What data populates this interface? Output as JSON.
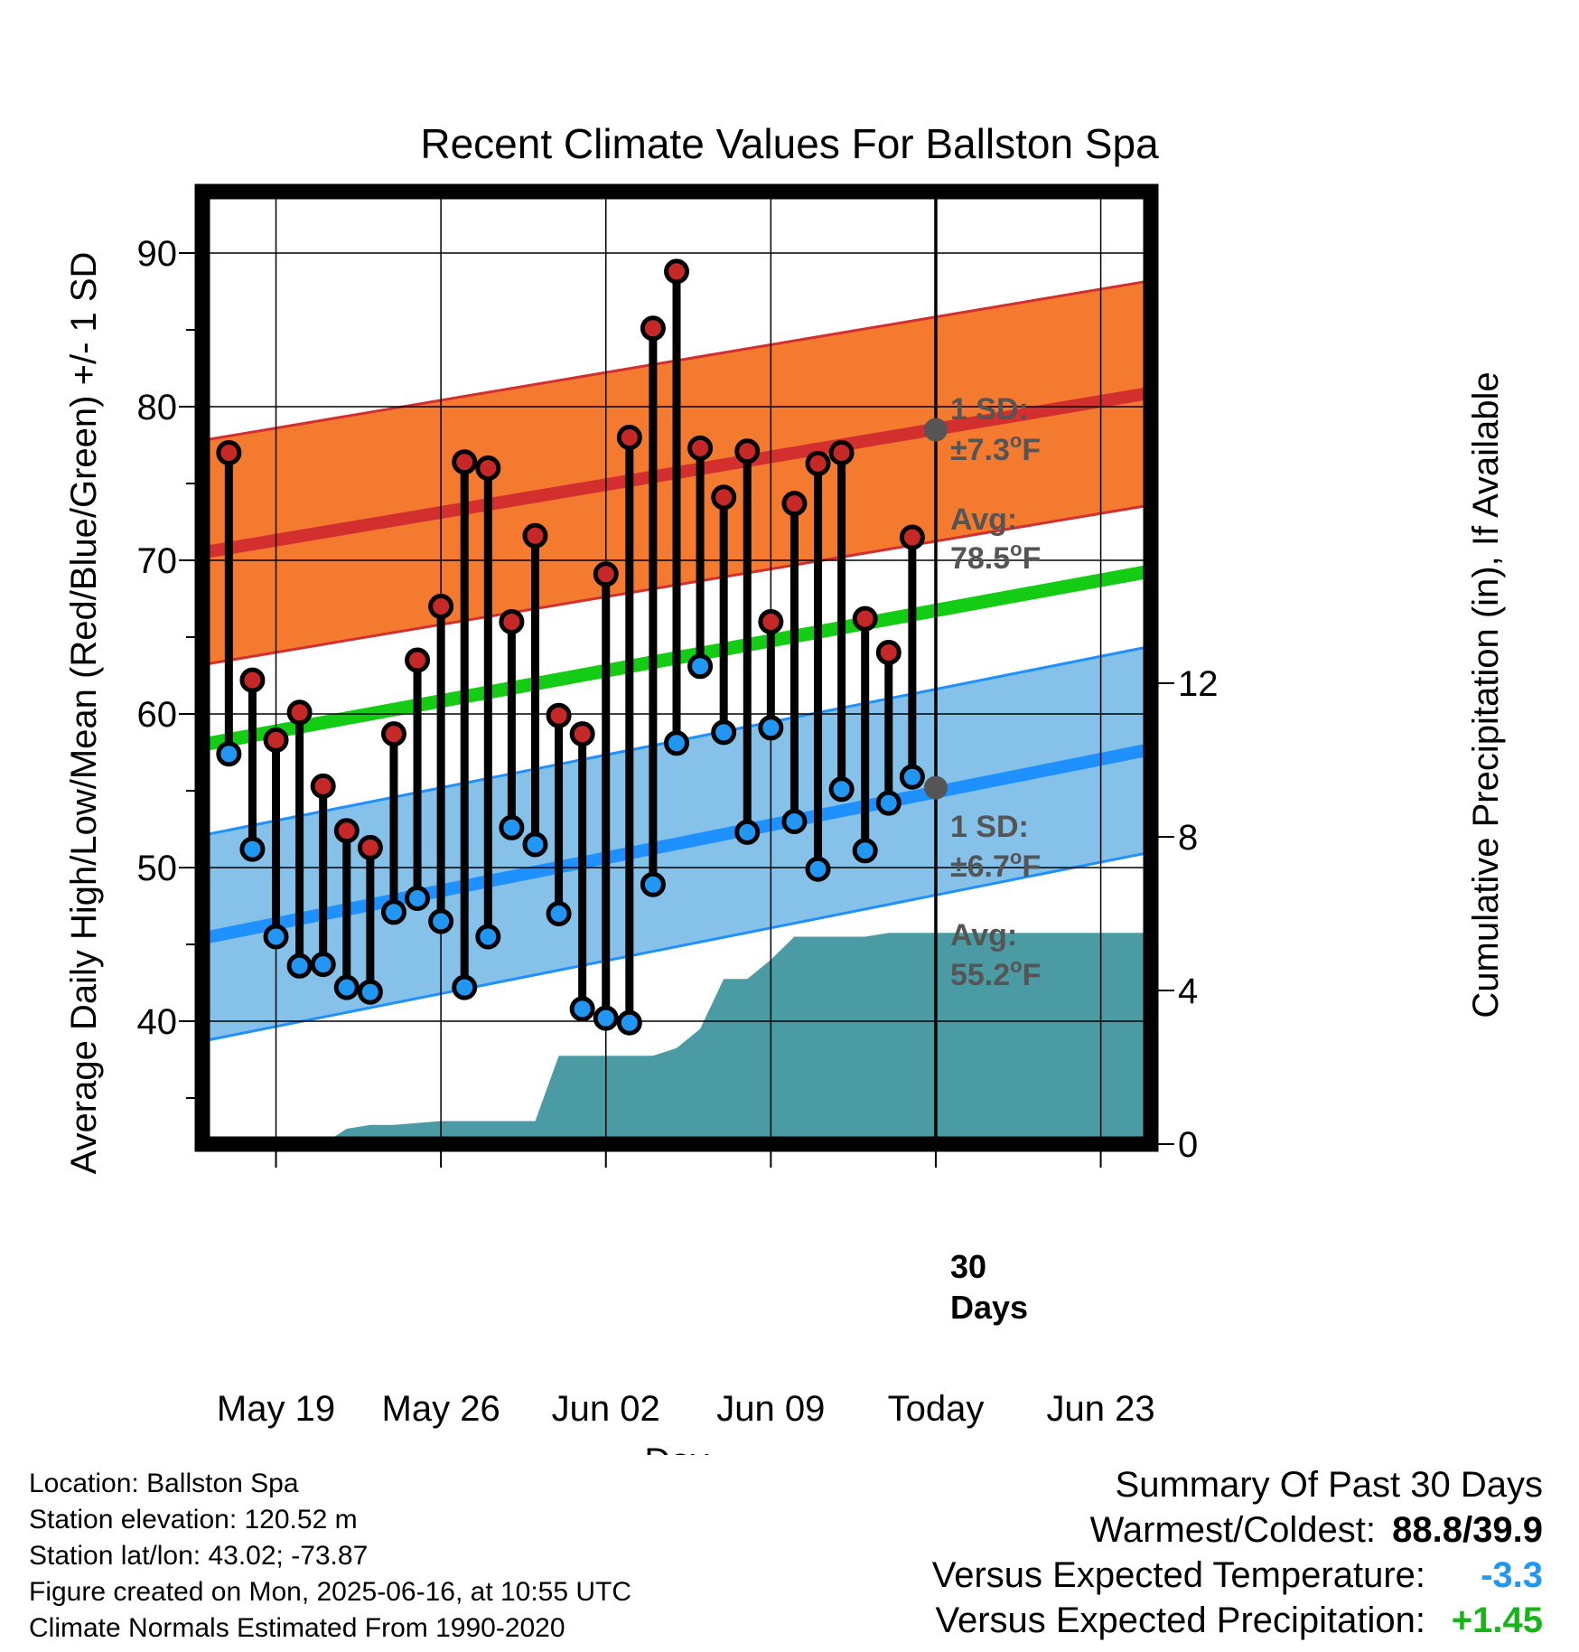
{
  "chart_data": {
    "type": "line",
    "title": "Recent Climate Values For Ballston Spa",
    "xlabel": "Day",
    "ylabel_left": "Average Daily High/Low/Mean (Red/Blue/Green) +/- 1 SD",
    "ylabel_right": "Cumulative Precipitation (in), If Available",
    "x_ticks": [
      "May 19",
      "May 26",
      "Jun 02",
      "Jun 09",
      "Today",
      "Jun 23"
    ],
    "x_tick_days": [
      "2025-05-19",
      "2025-05-26",
      "2025-06-02",
      "2025-06-09",
      "2025-06-16",
      "2025-06-23"
    ],
    "xlim": [
      "2025-05-15 21:00",
      "2025-06-25 03:00"
    ],
    "y_ticks_left": [
      "40",
      "50",
      "60",
      "70",
      "80",
      "90"
    ],
    "ylim_left": [
      32,
      94
    ],
    "y_ticks_right": [
      "0",
      "4",
      "8",
      "12"
    ],
    "ylim_right": [
      0,
      24.8
    ],
    "grid": true,
    "days": [
      "2025-05-17",
      "2025-05-18",
      "2025-05-19",
      "2025-05-20",
      "2025-05-21",
      "2025-05-22",
      "2025-05-23",
      "2025-05-24",
      "2025-05-25",
      "2025-05-26",
      "2025-05-27",
      "2025-05-28",
      "2025-05-29",
      "2025-05-30",
      "2025-05-31",
      "2025-06-01",
      "2025-06-02",
      "2025-06-03",
      "2025-06-04",
      "2025-06-05",
      "2025-06-06",
      "2025-06-07",
      "2025-06-08",
      "2025-06-09",
      "2025-06-10",
      "2025-06-11",
      "2025-06-12",
      "2025-06-13",
      "2025-06-14",
      "2025-06-15"
    ],
    "series": [
      {
        "name": "High",
        "color": "#c62828",
        "values": [
          77.0,
          62.2,
          58.3,
          60.1,
          55.3,
          52.4,
          51.3,
          58.7,
          63.5,
          67.0,
          76.4,
          76.0,
          66.0,
          71.6,
          59.9,
          58.7,
          69.1,
          78.0,
          85.1,
          88.8,
          77.3,
          74.1,
          77.1,
          66.0,
          73.7,
          76.3,
          77.0,
          66.2,
          64.0,
          71.5
        ]
      },
      {
        "name": "Low",
        "color": "#2196F3",
        "values": [
          57.4,
          51.2,
          45.5,
          43.6,
          43.7,
          42.2,
          41.9,
          47.1,
          48.0,
          46.5,
          42.2,
          45.5,
          52.6,
          51.5,
          47.0,
          40.8,
          40.2,
          39.9,
          48.9,
          58.1,
          63.1,
          58.8,
          52.3,
          59.1,
          53.0,
          49.9,
          55.1,
          51.1,
          54.2,
          55.9
        ]
      }
    ],
    "normal_high": {
      "start": 70.5,
      "end": 80.9,
      "sd": 7.3,
      "today_avg": 78.5
    },
    "normal_low": {
      "start": 45.4,
      "end": 57.7,
      "sd": 6.7,
      "today_avg": 55.2
    },
    "normal_mean": {
      "start": 58.0,
      "end": 69.3
    },
    "precip_cumulative": {
      "days": [
        "2025-05-21",
        "2025-05-22",
        "2025-05-23",
        "2025-05-24",
        "2025-05-25",
        "2025-05-26",
        "2025-05-27",
        "2025-05-28",
        "2025-05-29",
        "2025-05-30",
        "2025-05-31",
        "2025-06-01",
        "2025-06-02",
        "2025-06-03",
        "2025-06-04",
        "2025-06-05",
        "2025-06-06",
        "2025-06-07",
        "2025-06-08",
        "2025-06-09",
        "2025-06-10",
        "2025-06-11",
        "2025-06-12",
        "2025-06-13",
        "2025-06-14",
        "2025-06-15",
        "2025-06-16",
        "2025-06-25"
      ],
      "values": [
        0.0,
        0.4,
        0.5,
        0.5,
        0.55,
        0.6,
        0.6,
        0.6,
        0.6,
        0.6,
        2.3,
        2.3,
        2.3,
        2.3,
        2.3,
        2.5,
        3.0,
        4.3,
        4.3,
        4.8,
        5.4,
        5.4,
        5.4,
        5.4,
        5.5,
        5.5,
        5.5,
        5.5
      ]
    },
    "annotations": {
      "high_sd_label": "1 SD:",
      "high_sd_value": "±7.3°F",
      "high_avg_label": "Avg:",
      "high_avg_value": "78.5°F",
      "low_sd_label": "1 SD:",
      "low_sd_value": "±6.7°F",
      "low_avg_label": "Avg:",
      "low_avg_value": "55.2°F",
      "days_num": "30",
      "days_word": "Days"
    },
    "colors": {
      "high_band": "#F47A30",
      "high_line": "#D32F2F",
      "low_band": "#85C1E9",
      "low_line": "#1E90FF",
      "mean_line": "#13CC13",
      "precip": "#4A9BA4",
      "today_marker": "#555555"
    }
  },
  "info": {
    "location": "Location: Ballston Spa",
    "elevation": "Station elevation: 120.52 m",
    "latlon": "Station lat/lon: 43.02; -73.87",
    "created": "Figure created on Mon, 2025-06-16, at 10:55 UTC",
    "normals": "Climate Normals Estimated From 1990-2020"
  },
  "summary": {
    "heading": "Summary Of Past 30 Days",
    "warm_cold_label": "Warmest/Coldest:",
    "warm_cold_value": "88.8/39.9",
    "temp_label": "Versus Expected Temperature:",
    "temp_value": "-3.3",
    "precip_label": "Versus Expected Precipitation:",
    "precip_value": "+1.45"
  }
}
